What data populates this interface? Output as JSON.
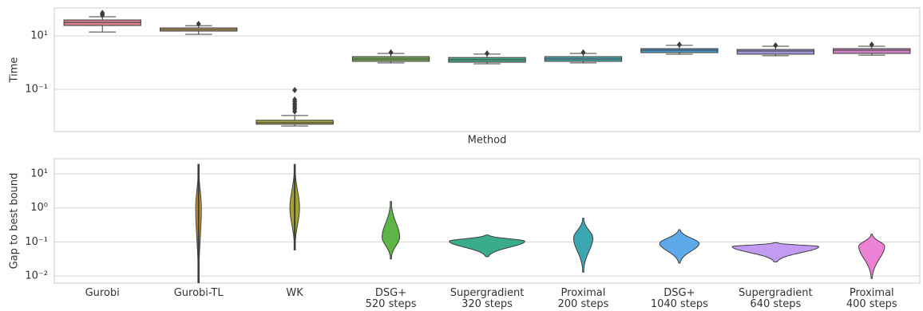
{
  "chart_data": [
    {
      "type": "box",
      "ylabel": "Time",
      "xlabel": "Method",
      "log_scale": true,
      "grid": true,
      "categories": [
        null,
        null,
        null,
        null,
        null,
        null,
        null,
        null,
        null
      ],
      "ylim": [
        0.0026,
        111
      ],
      "yticks": [
        {
          "value": 10,
          "label": "10¹"
        },
        {
          "value": 0.1,
          "label": "10⁻¹"
        }
      ],
      "colors": [
        "#d4838c",
        "#c09a5f",
        "#a5a344",
        "#71a753",
        "#4da68b",
        "#4aa2a6",
        "#4d9cc7",
        "#a393d6",
        "#cc83c4"
      ],
      "boxes": [
        {
          "whislo": 14,
          "q1": 24.4,
          "median": 32,
          "q3": 39.5,
          "whishi": 52,
          "fliers": [
            60,
            66,
            72
          ]
        },
        {
          "whislo": 11.5,
          "q1": 15.1,
          "median": 17.3,
          "q3": 19.9,
          "whishi": 24,
          "fliers": [
            28
          ]
        },
        {
          "whislo": 0.0042,
          "q1": 0.0049,
          "median": 0.0056,
          "q3": 0.0069,
          "whishi": 0.0104,
          "fliers": [
            0.0146,
            0.018,
            0.021,
            0.025,
            0.029,
            0.035,
            0.041,
            0.093
          ]
        },
        {
          "whislo": 0.97,
          "q1": 1.11,
          "median": 1.36,
          "q3": 1.67,
          "whishi": 2.2,
          "fliers": [
            2.4
          ]
        },
        {
          "whislo": 0.9,
          "q1": 1.03,
          "median": 1.27,
          "q3": 1.55,
          "whishi": 2.07,
          "fliers": [
            2.2
          ]
        },
        {
          "whislo": 0.97,
          "q1": 1.11,
          "median": 1.36,
          "q3": 1.67,
          "whishi": 2.2,
          "fliers": [
            2.4
          ]
        },
        {
          "whislo": 2.06,
          "q1": 2.36,
          "median": 2.9,
          "q3": 3.33,
          "whishi": 4.4,
          "fliers": [
            4.7
          ]
        },
        {
          "whislo": 1.8,
          "q1": 2.06,
          "median": 2.7,
          "q3": 3.1,
          "whishi": 4.1,
          "fliers": [
            4.4
          ]
        },
        {
          "whislo": 1.9,
          "q1": 2.2,
          "median": 2.9,
          "q3": 3.33,
          "whishi": 4.1,
          "fliers": [
            4.7
          ]
        }
      ]
    },
    {
      "type": "violin",
      "ylabel": "Gap to best bound",
      "log_scale": true,
      "grid": true,
      "categories": [
        "Gurobi",
        "Gurobi-TL",
        "WK",
        "DSG+\n520 steps",
        "Supergradient\n320 steps",
        "Proximal\n200 steps",
        "DSG+\n1040 steps",
        "Supergradient\n640 steps",
        "Proximal\n400 steps"
      ],
      "ylim": [
        0.0062,
        27.9
      ],
      "yticks": [
        {
          "value": 10,
          "label": "10¹"
        },
        {
          "value": 1,
          "label": "10⁰"
        },
        {
          "value": 0.1,
          "label": "10⁻¹"
        },
        {
          "value": 0.01,
          "label": "10⁻²"
        }
      ],
      "colors": [
        "#f77189",
        "#c8953a",
        "#a3a330",
        "#5cb545",
        "#3aab8b",
        "#3ca7b0",
        "#5da9e9",
        "#c29cf2",
        "#eb82d4"
      ],
      "violins": [
        null,
        {
          "min": 0.005,
          "peak": 1,
          "max": 19
        },
        {
          "min": 0.058,
          "peak": 1,
          "max": 19
        },
        {
          "min": 0.032,
          "peak": 0.14,
          "max": 1.54
        },
        {
          "min": 0.037,
          "peak": 0.105,
          "max": 0.16
        },
        {
          "min": 0.013,
          "peak": 0.13,
          "max": 0.5
        },
        {
          "min": 0.024,
          "peak": 0.09,
          "max": 0.23
        },
        {
          "min": 0.026,
          "peak": 0.073,
          "max": 0.095
        },
        {
          "min": 0.0085,
          "peak": 0.075,
          "max": 0.17
        }
      ]
    }
  ]
}
